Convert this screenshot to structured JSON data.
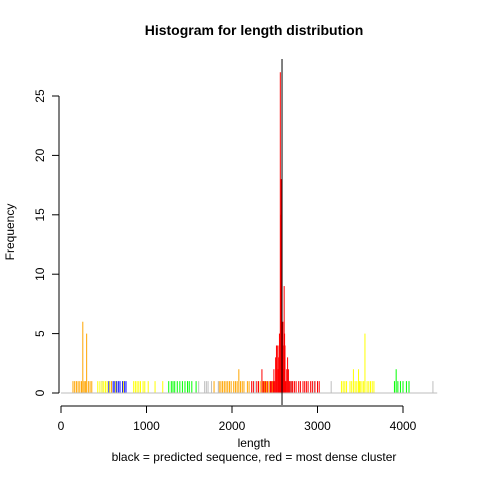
{
  "chart_data": {
    "type": "bar",
    "title": "Histogram for length distribution",
    "xlabel": "length",
    "ylabel": "Frequency",
    "subtitle": "black = predicted sequence, red = most dense cluster",
    "xlim": [
      0,
      4400
    ],
    "ylim": [
      0,
      28
    ],
    "x_ticks": [
      0,
      1000,
      2000,
      3000,
      4000
    ],
    "y_ticks": [
      0,
      5,
      10,
      15,
      20,
      25
    ],
    "predicted_sequence_length": 2585,
    "grid": false,
    "series": [
      {
        "color": "#FFA500",
        "values": [
          [
            140,
            1
          ],
          [
            160,
            1
          ],
          [
            180,
            1
          ],
          [
            200,
            1
          ],
          [
            220,
            1
          ],
          [
            240,
            1
          ],
          [
            255,
            6
          ],
          [
            270,
            1
          ],
          [
            285,
            1
          ],
          [
            300,
            5
          ],
          [
            320,
            1
          ],
          [
            340,
            1
          ],
          [
            360,
            1
          ],
          [
            590,
            1
          ],
          [
            1790,
            1
          ],
          [
            1850,
            1
          ],
          [
            1870,
            1
          ],
          [
            1890,
            1
          ],
          [
            1910,
            1
          ],
          [
            1930,
            1
          ],
          [
            1950,
            1
          ],
          [
            1970,
            1
          ],
          [
            1990,
            1
          ],
          [
            2020,
            1
          ],
          [
            2040,
            1
          ],
          [
            2060,
            1
          ],
          [
            2080,
            2
          ],
          [
            2100,
            1
          ],
          [
            2120,
            1
          ],
          [
            2140,
            1
          ],
          [
            2180,
            1
          ],
          [
            2200,
            1
          ],
          [
            2330,
            1
          ],
          [
            2360,
            1
          ],
          [
            2380,
            1
          ],
          [
            2400,
            1
          ],
          [
            2410,
            1
          ],
          [
            2440,
            1
          ],
          [
            2470,
            1
          ]
        ]
      },
      {
        "color": "#0000FF",
        "values": [
          [
            480,
            1
          ],
          [
            560,
            1
          ],
          [
            610,
            1
          ],
          [
            630,
            1
          ],
          [
            650,
            1
          ],
          [
            670,
            1
          ],
          [
            690,
            1
          ],
          [
            720,
            1
          ],
          [
            740,
            1
          ],
          [
            760,
            1
          ]
        ]
      },
      {
        "color": "#FFFF00",
        "values": [
          [
            430,
            1
          ],
          [
            455,
            1
          ],
          [
            480,
            1
          ],
          [
            500,
            1
          ],
          [
            520,
            1
          ],
          [
            540,
            1
          ],
          [
            570,
            1
          ],
          [
            640,
            1
          ],
          [
            730,
            1
          ],
          [
            850,
            1
          ],
          [
            870,
            1
          ],
          [
            890,
            1
          ],
          [
            910,
            1
          ],
          [
            930,
            1
          ],
          [
            960,
            1
          ],
          [
            980,
            1
          ],
          [
            1020,
            1
          ],
          [
            1100,
            1
          ],
          [
            1190,
            1
          ],
          [
            3280,
            1
          ],
          [
            3300,
            1
          ],
          [
            3320,
            1
          ],
          [
            3340,
            1
          ],
          [
            3380,
            1
          ],
          [
            3400,
            1
          ],
          [
            3420,
            2
          ],
          [
            3440,
            1
          ],
          [
            3460,
            1
          ],
          [
            3480,
            2
          ],
          [
            3490,
            1
          ],
          [
            3500,
            1
          ],
          [
            3520,
            1
          ],
          [
            3540,
            1
          ],
          [
            3555,
            5
          ],
          [
            3580,
            1
          ],
          [
            3600,
            1
          ],
          [
            3620,
            1
          ],
          [
            3640,
            1
          ],
          [
            3660,
            1
          ]
        ]
      },
      {
        "color": "#00FF00",
        "values": [
          [
            1260,
            1
          ],
          [
            1290,
            1
          ],
          [
            1310,
            1
          ],
          [
            1330,
            1
          ],
          [
            1360,
            1
          ],
          [
            1390,
            1
          ],
          [
            1420,
            1
          ],
          [
            1450,
            1
          ],
          [
            1480,
            1
          ],
          [
            1500,
            1
          ],
          [
            1530,
            1
          ],
          [
            1580,
            1
          ],
          [
            3900,
            1
          ],
          [
            3920,
            2
          ],
          [
            3940,
            1
          ],
          [
            3970,
            1
          ],
          [
            4000,
            1
          ],
          [
            4040,
            1
          ],
          [
            4070,
            1
          ]
        ]
      },
      {
        "color": "#BEBEBE",
        "values": [
          [
            1610,
            1
          ],
          [
            1680,
            1
          ],
          [
            1700,
            1
          ],
          [
            1720,
            1
          ],
          [
            1760,
            1
          ],
          [
            1840,
            1
          ],
          [
            2270,
            1
          ],
          [
            2620,
            1
          ],
          [
            2690,
            1
          ],
          [
            2960,
            1
          ],
          [
            3160,
            1
          ],
          [
            4350,
            1
          ]
        ]
      },
      {
        "color": "#FF0000",
        "values": [
          [
            2230,
            1
          ],
          [
            2250,
            1
          ],
          [
            2290,
            1
          ],
          [
            2310,
            1
          ],
          [
            2350,
            2
          ],
          [
            2370,
            1
          ],
          [
            2390,
            1
          ],
          [
            2420,
            1
          ],
          [
            2450,
            1
          ],
          [
            2460,
            1
          ],
          [
            2480,
            1
          ],
          [
            2490,
            2
          ],
          [
            2500,
            1
          ],
          [
            2510,
            3
          ],
          [
            2520,
            4
          ],
          [
            2530,
            4
          ],
          [
            2540,
            2
          ],
          [
            2545,
            3
          ],
          [
            2550,
            4
          ],
          [
            2555,
            5
          ],
          [
            2560,
            5
          ],
          [
            2565,
            27
          ],
          [
            2570,
            15
          ],
          [
            2575,
            18
          ],
          [
            2580,
            6
          ],
          [
            2585,
            3
          ],
          [
            2590,
            4
          ],
          [
            2595,
            6
          ],
          [
            2600,
            4
          ],
          [
            2605,
            2
          ],
          [
            2610,
            9
          ],
          [
            2615,
            5
          ],
          [
            2620,
            4
          ],
          [
            2630,
            1
          ],
          [
            2640,
            2
          ],
          [
            2650,
            3
          ],
          [
            2660,
            2
          ],
          [
            2670,
            1
          ],
          [
            2680,
            1
          ],
          [
            2700,
            1
          ],
          [
            2710,
            1
          ],
          [
            2730,
            1
          ],
          [
            2750,
            1
          ],
          [
            2780,
            1
          ],
          [
            2800,
            1
          ],
          [
            2830,
            1
          ],
          [
            2850,
            1
          ],
          [
            2870,
            1
          ],
          [
            2890,
            1
          ],
          [
            2920,
            1
          ],
          [
            2940,
            1
          ],
          [
            2970,
            1
          ],
          [
            3000,
            1
          ],
          [
            3020,
            1
          ]
        ]
      }
    ]
  }
}
